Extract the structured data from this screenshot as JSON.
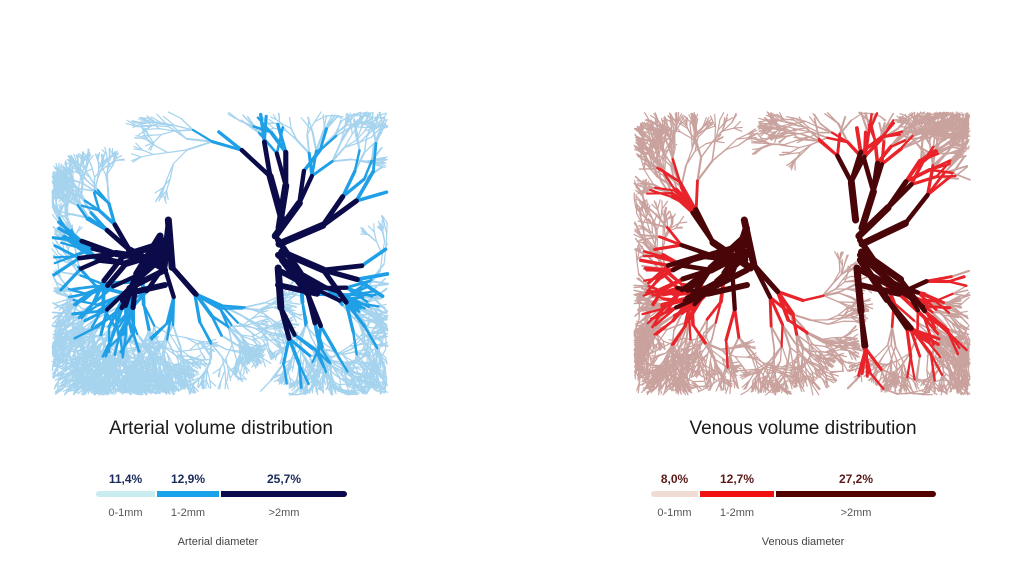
{
  "arterial": {
    "title": "Arterial volume distribution",
    "axis_label": "Arterial diameter",
    "segments": [
      {
        "range": "0-1mm",
        "percent": "11,4%",
        "value": 11.4,
        "color": "#c8ecef"
      },
      {
        "range": "1-2mm",
        "percent": "12,9%",
        "value": 12.9,
        "color": "#1aa3ea"
      },
      {
        "range": ">2mm",
        "percent": "25,7%",
        "value": 25.7,
        "color": "#0a0a4c"
      }
    ],
    "label_color": "#1a2a5a",
    "vessel_colors": {
      "small": "#a6d3ee",
      "medium": "#1e9fe6",
      "large": "#0b0b4a"
    }
  },
  "venous": {
    "title": "Venous volume distribution",
    "axis_label": "Venous diameter",
    "segments": [
      {
        "range": "0-1mm",
        "percent": "8,0%",
        "value": 8.0,
        "color": "#f0dcd2"
      },
      {
        "range": "1-2mm",
        "percent": "12,7%",
        "value": 12.7,
        "color": "#f01010"
      },
      {
        "range": ">2mm",
        "percent": "27,2%",
        "value": 27.2,
        "color": "#520000"
      }
    ],
    "label_color": "#5a1a1a",
    "vessel_colors": {
      "small": "#c9a29e",
      "medium": "#e8232a",
      "large": "#4a0508"
    }
  }
}
